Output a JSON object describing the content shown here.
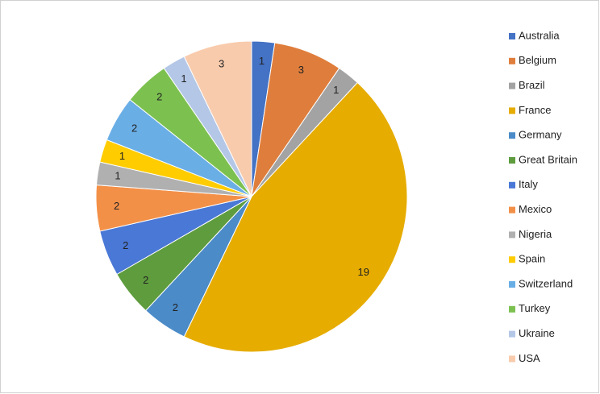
{
  "chart_data": {
    "type": "pie",
    "categories": [
      "Australia",
      "Belgium",
      "Brazil",
      "France",
      "Germany",
      "Great Britain",
      "Italy",
      "Mexico",
      "Nigeria",
      "Spain",
      "Switzerland",
      "Turkey",
      "Ukraine",
      "USA"
    ],
    "values": [
      1,
      3,
      1,
      19,
      2,
      2,
      2,
      2,
      1,
      1,
      2,
      2,
      1,
      3
    ],
    "colors": [
      "#4472c4",
      "#df7e3c",
      "#a3a3a3",
      "#e6ac00",
      "#4b8bc8",
      "#5e9c3e",
      "#4a78d6",
      "#f39048",
      "#b0b0b0",
      "#ffcc00",
      "#6aaee6",
      "#7cc150",
      "#b4c7e7",
      "#f8cbad"
    ],
    "legend": "right"
  }
}
